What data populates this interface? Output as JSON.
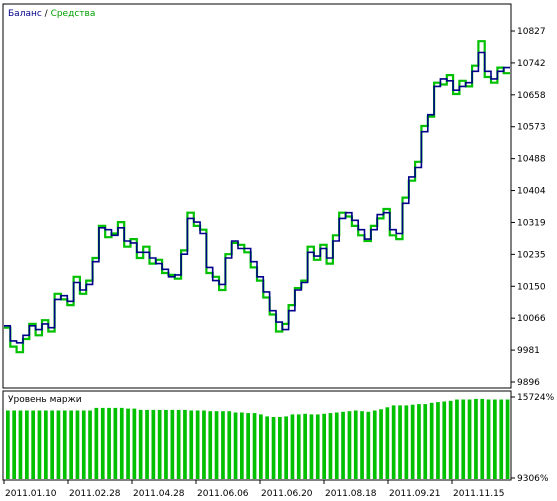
{
  "chart_data": [
    {
      "type": "line",
      "legend": {
        "balance_label": "Баланс",
        "separator": " / ",
        "equity_label": "Средства",
        "placement": "top-left"
      },
      "y_ticks": [
        "10827",
        "10742",
        "10658",
        "10573",
        "10488",
        "10404",
        "10319",
        "10235",
        "10150",
        "10066",
        "9981",
        "9896"
      ],
      "ylim": [
        9896,
        10827
      ],
      "x_ticks": [
        "2011.01.10",
        "2011.02.28",
        "2011.04.28",
        "2011.06.06",
        "2011.06.20",
        "2011.08.18",
        "2011.09.21",
        "2011.11.15"
      ],
      "grid": false,
      "colors": {
        "balance": "#00008b",
        "equity": "#00c000",
        "axis": "#000000"
      },
      "series": [
        {
          "name": "Баланс",
          "values": [
            10045,
            10005,
            10000,
            10020,
            10045,
            10035,
            10050,
            10040,
            10115,
            10125,
            10110,
            10160,
            10140,
            10155,
            10215,
            10305,
            10300,
            10285,
            10305,
            10270,
            10265,
            10240,
            10240,
            10225,
            10210,
            10195,
            10175,
            10180,
            10235,
            10330,
            10320,
            10290,
            10200,
            10165,
            10155,
            10225,
            10270,
            10250,
            10250,
            10215,
            10175,
            10135,
            10085,
            10055,
            10035,
            10085,
            10140,
            10160,
            10240,
            10230,
            10250,
            10225,
            10270,
            10330,
            10345,
            10325,
            10300,
            10275,
            10300,
            10340,
            10345,
            10300,
            10290,
            10370,
            10440,
            10465,
            10560,
            10605,
            10680,
            10700,
            10695,
            10670,
            10680,
            10690,
            10720,
            10770,
            10720,
            10700,
            10720,
            10730
          ]
        },
        {
          "name": "Средства",
          "values": [
            10040,
            9990,
            9975,
            10010,
            10050,
            10020,
            10060,
            10030,
            10130,
            10115,
            10100,
            10175,
            10130,
            10165,
            10225,
            10310,
            10280,
            10290,
            10320,
            10255,
            10275,
            10225,
            10255,
            10210,
            10220,
            10185,
            10180,
            10170,
            10245,
            10345,
            10310,
            10300,
            10185,
            10175,
            10140,
            10235,
            10265,
            10260,
            10240,
            10200,
            10165,
            10120,
            10075,
            10030,
            10050,
            10100,
            10145,
            10165,
            10255,
            10220,
            10260,
            10210,
            10285,
            10345,
            10335,
            10310,
            10285,
            10270,
            10310,
            10330,
            10355,
            10285,
            10275,
            10385,
            10430,
            10480,
            10575,
            10600,
            10690,
            10685,
            10710,
            10660,
            10695,
            10680,
            10735,
            10800,
            10705,
            10690,
            10730,
            10715
          ]
        }
      ]
    },
    {
      "type": "bar",
      "title": "Уровень маржи",
      "y_ticks": [
        "15724%",
        "9306%"
      ],
      "ylim": [
        9306,
        15724
      ],
      "x_ticks": [
        "2011.01.10",
        "2011.02.28",
        "2011.04.28",
        "2011.06.06",
        "2011.06.20",
        "2011.08.18",
        "2011.09.21",
        "2011.11.15"
      ],
      "color": "#00c000",
      "values": [
        14600,
        14600,
        14600,
        14600,
        14600,
        14600,
        14600,
        14600,
        14600,
        14600,
        14600,
        14600,
        14600,
        14600,
        14800,
        14800,
        14800,
        14800,
        14800,
        14750,
        14750,
        14650,
        14650,
        14650,
        14650,
        14650,
        14650,
        14650,
        14650,
        14600,
        14600,
        14600,
        14550,
        14550,
        14550,
        14550,
        14450,
        14450,
        14400,
        14400,
        14300,
        14150,
        14100,
        14100,
        14150,
        14300,
        14300,
        14350,
        14300,
        14300,
        14350,
        14400,
        14450,
        14500,
        14550,
        14600,
        14550,
        14500,
        14600,
        14700,
        14850,
        15000,
        15000,
        15000,
        15050,
        15100,
        15100,
        15200,
        15250,
        15300,
        15350,
        15450,
        15450,
        15450,
        15500,
        15500,
        15450,
        15450,
        15450,
        15450
      ]
    }
  ]
}
